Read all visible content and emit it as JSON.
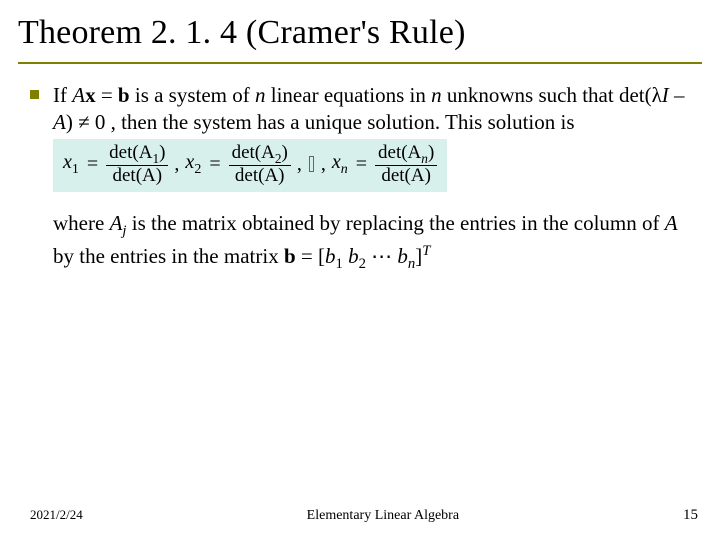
{
  "title": "Theorem 2. 1. 4 (Cramer's Rule)",
  "title_rule_color": "#808000",
  "bullet_color": "#808000",
  "body": {
    "lead_1": "If ",
    "A": "A",
    "x": "x",
    "eq": " = ",
    "b": "b",
    "lead_2": " is a system of ",
    "n1": "n",
    "lead_3": " linear equations in ",
    "n2": "n",
    "lead_4": " unknowns such that det(λ",
    "I": "I",
    "minus": " – ",
    "A2": "A",
    "lead_5": ") ≠ 0 , then the system has a unique solution. This solution is"
  },
  "formula": {
    "background": "#d7f0ec",
    "terms": [
      {
        "lhs_var": "x",
        "lhs_sub": "1",
        "num": "det(A",
        "num_sub": "1",
        "num_close": ")",
        "den": "det(A)"
      },
      {
        "lhs_var": "x",
        "lhs_sub": "2",
        "num": "det(A",
        "num_sub": "2",
        "num_close": ")",
        "den": "det(A)"
      },
      {
        "lhs_var": "x",
        "lhs_sub": "n",
        "num": "det(A",
        "num_sub": "n",
        "num_close": ")",
        "den": "det(A)"
      }
    ],
    "sep": ", ",
    "ellipsis": true
  },
  "where": {
    "t1": "where ",
    "Aj_A": "A",
    "Aj_j": "j",
    "t2": " is the matrix obtained by replacing the entries in the column of ",
    "A": "A",
    "t3": " by the entries in the matrix ",
    "b": "b",
    "t4": " = [",
    "b1_b": "b",
    "b1_s": "1",
    "sp1": " ",
    "b2_b": "b",
    "b2_s": "2",
    "dots": " ⋯ ",
    "bn_b": "b",
    "bn_s": "n",
    "t5": "]",
    "T": "T"
  },
  "footer": {
    "date": "2021/2/24",
    "center": "Elementary Linear Algebra",
    "page": "15"
  }
}
